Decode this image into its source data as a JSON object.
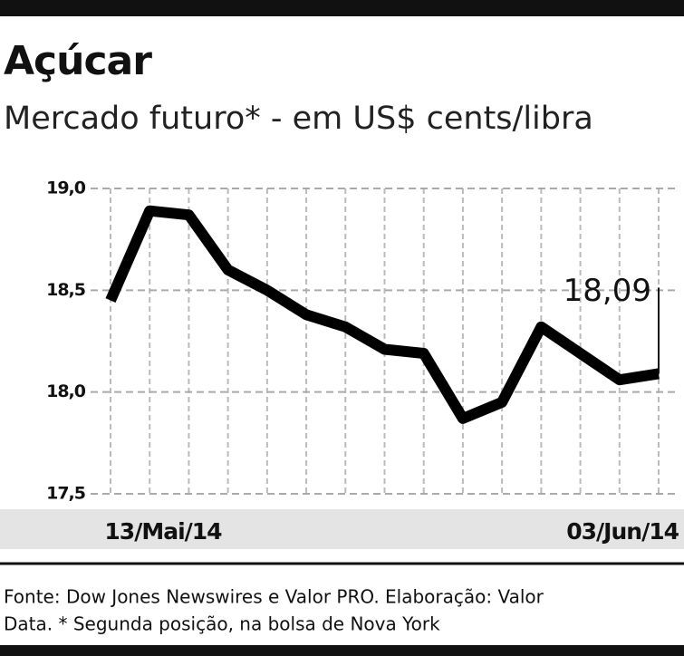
{
  "chart_data": {
    "type": "line",
    "title": "Açúcar",
    "subtitle": "Mercado futuro* - em US$ cents/libra",
    "categories": [
      "13/Mai/14",
      null,
      null,
      null,
      null,
      null,
      null,
      null,
      null,
      null,
      null,
      null,
      null,
      null,
      "03/Jun/14"
    ],
    "series": [
      {
        "color": "#000000",
        "values": [
          18.45,
          18.89,
          18.87,
          18.6,
          18.5,
          18.38,
          18.32,
          18.21,
          18.19,
          17.87,
          17.95,
          18.32,
          18.19,
          18.06,
          18.09
        ],
        "value_labels": [
          null,
          null,
          null,
          null,
          null,
          null,
          null,
          null,
          null,
          null,
          null,
          null,
          null,
          null,
          "18,09"
        ]
      }
    ],
    "ylim": [
      17.5,
      19.0
    ],
    "yticks": [
      {
        "value": 17.5,
        "label": "17,5"
      },
      {
        "value": 18.0,
        "label": "18,0"
      },
      {
        "value": 18.5,
        "label": "18,5"
      },
      {
        "value": 19.0,
        "label": "19,0"
      }
    ],
    "grid": true,
    "source": [
      "Fonte: Dow Jones Newswires e Valor PRO. Elaboração: Valor",
      "Data. * Segunda posição, na bolsa de Nova York"
    ]
  }
}
